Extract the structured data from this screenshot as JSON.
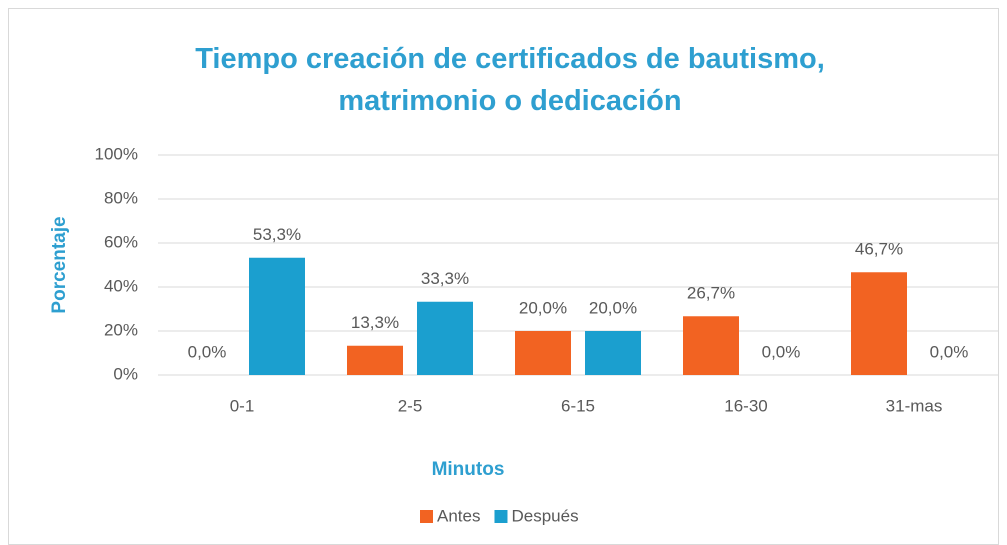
{
  "chart_data": {
    "type": "bar",
    "title": "Tiempo creación de certificados de bautismo, matrimonio o dedicación",
    "x_label": "Minutos",
    "y_label": "Porcentaje",
    "categories": [
      "0-1",
      "2-5",
      "6-15",
      "16-30",
      "31-mas"
    ],
    "series": [
      {
        "name": "Antes",
        "color": "#f26322",
        "values": [
          0,
          13.3,
          20,
          26.7,
          46.7
        ],
        "value_labels": [
          "0,0%",
          "13,3%",
          "20,0%",
          "26,7%",
          "46,7%"
        ]
      },
      {
        "name": "Después",
        "color": "#1b9fcf",
        "values": [
          53.3,
          33.3,
          20,
          0,
          0
        ],
        "value_labels": [
          "53,3%",
          "33,3%",
          "20,0%",
          "0,0%",
          "0,0%"
        ]
      }
    ],
    "ylim": [
      0,
      100
    ],
    "yticks": [
      {
        "value": 0,
        "label": "0%"
      },
      {
        "value": 20,
        "label": "20%"
      },
      {
        "value": 40,
        "label": "40%"
      },
      {
        "value": 60,
        "label": "60%"
      },
      {
        "value": 80,
        "label": "80%"
      },
      {
        "value": 100,
        "label": "100%"
      }
    ],
    "grid": true,
    "legend": "bottom"
  }
}
